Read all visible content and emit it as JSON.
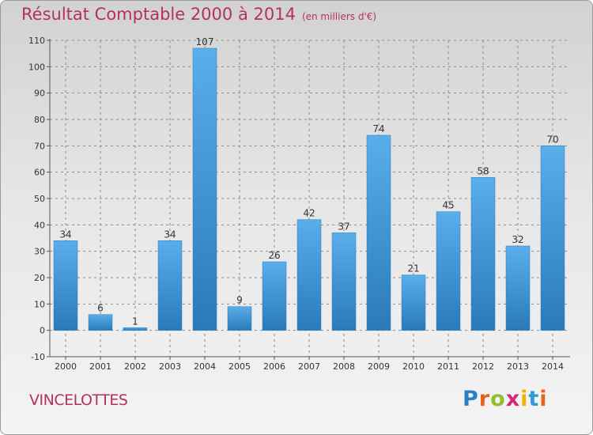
{
  "header": {
    "title": "Résultat Comptable 2000 à 2014",
    "subtitle": "(en milliers d'€)"
  },
  "footer": {
    "commune": "VINCELOTTES",
    "logo_letters": [
      "P",
      "r",
      "o",
      "x",
      "i",
      "t",
      "i"
    ]
  },
  "colors": {
    "title": "#b5315c",
    "bar_top": "#5aaeea",
    "bar_bottom": "#2a7ab9"
  },
  "chart_data": {
    "type": "bar",
    "title": "Résultat Comptable 2000 à 2014",
    "unit": "(en milliers d'€)",
    "categories": [
      "2000",
      "2001",
      "2002",
      "2003",
      "2004",
      "2005",
      "2006",
      "2007",
      "2008",
      "2009",
      "2010",
      "2011",
      "2012",
      "2013",
      "2014"
    ],
    "values": [
      34,
      6,
      1,
      34,
      107,
      9,
      26,
      42,
      37,
      74,
      21,
      45,
      58,
      32,
      70
    ],
    "ylim": [
      -10,
      110
    ],
    "yticks": [
      -10,
      0,
      10,
      20,
      30,
      40,
      50,
      60,
      70,
      80,
      90,
      100,
      110
    ],
    "grid": true,
    "xlabel": "",
    "ylabel": ""
  }
}
